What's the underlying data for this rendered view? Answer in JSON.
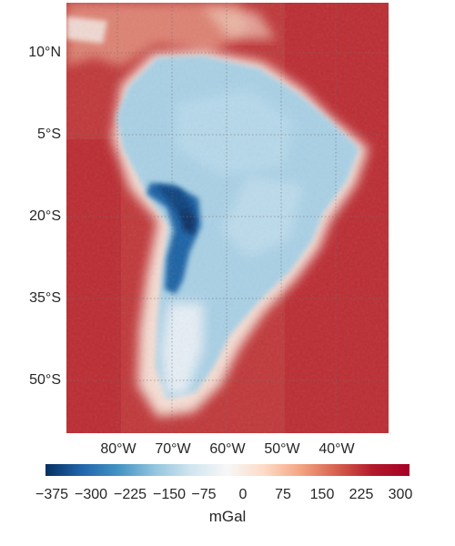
{
  "map": {
    "lat_labels": [
      "10°N",
      "5°S",
      "20°S",
      "35°S",
      "50°S"
    ],
    "lon_labels": [
      "80°W",
      "70°W",
      "60°W",
      "50°W",
      "40°W"
    ],
    "gridlines": true,
    "region": "South America",
    "colormap": "RdBu_r"
  },
  "colorbar": {
    "ticks": [
      "−375",
      "−300",
      "−225",
      "−150",
      "−75",
      "0",
      "75",
      "150",
      "225",
      "300"
    ],
    "label": "mGal",
    "colors": {
      "min": "#053061",
      "mid": "#f7f7f7",
      "max": "#a50026"
    }
  }
}
